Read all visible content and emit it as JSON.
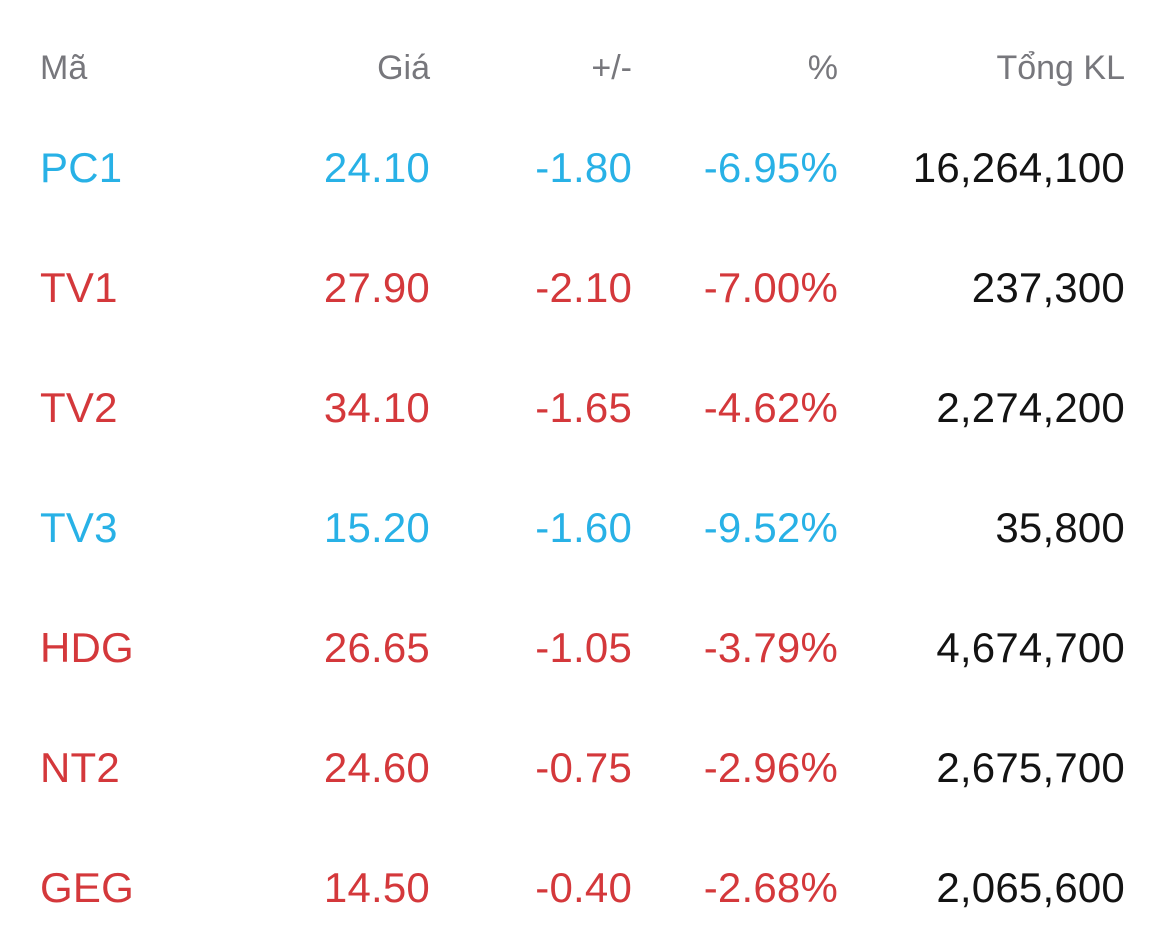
{
  "table": {
    "headers": [
      {
        "label": "Mã"
      },
      {
        "label": "Giá"
      },
      {
        "label": "+/-"
      },
      {
        "label": "%"
      },
      {
        "label": "Tổng KL"
      }
    ],
    "rows": [
      {
        "code": "PC1",
        "price": "24.10",
        "change": "-1.80",
        "percent": "-6.95%",
        "volume": "16,264,100",
        "trend": "floor"
      },
      {
        "code": "TV1",
        "price": "27.90",
        "change": "-2.10",
        "percent": "-7.00%",
        "volume": "237,300",
        "trend": "down"
      },
      {
        "code": "TV2",
        "price": "34.10",
        "change": "-1.65",
        "percent": "-4.62%",
        "volume": "2,274,200",
        "trend": "down"
      },
      {
        "code": "TV3",
        "price": "15.20",
        "change": "-1.60",
        "percent": "-9.52%",
        "volume": "35,800",
        "trend": "floor"
      },
      {
        "code": "HDG",
        "price": "26.65",
        "change": "-1.05",
        "percent": "-3.79%",
        "volume": "4,674,700",
        "trend": "down"
      },
      {
        "code": "NT2",
        "price": "24.60",
        "change": "-0.75",
        "percent": "-2.96%",
        "volume": "2,675,700",
        "trend": "down"
      },
      {
        "code": "GEG",
        "price": "14.50",
        "change": "-0.40",
        "percent": "-2.68%",
        "volume": "2,065,600",
        "trend": "down"
      }
    ],
    "colors": {
      "floor": "#28b1e6",
      "down": "#d4383b",
      "volume": "#131313",
      "header": "#77777c"
    }
  }
}
